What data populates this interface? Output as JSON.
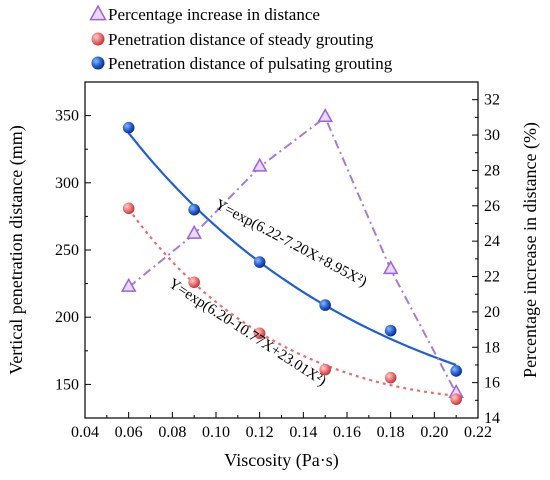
{
  "chart_data": {
    "type": "line",
    "xlabel": "Viscosity (Pa·s)",
    "ylabel": "Vertical penetration distance (mm)",
    "y2label": "Percentage increase in distance (%)",
    "xlim": [
      0.04,
      0.22
    ],
    "ylim": [
      125,
      375
    ],
    "y2lim": [
      14,
      33
    ],
    "xticks": [
      "0.04",
      "0.06",
      "0.08",
      "0.10",
      "0.12",
      "0.14",
      "0.16",
      "0.18",
      "0.20",
      "0.22"
    ],
    "yticks": [
      "150",
      "200",
      "250",
      "300",
      "350"
    ],
    "y2ticks": [
      "14",
      "16",
      "18",
      "20",
      "22",
      "24",
      "26",
      "28",
      "30",
      "32"
    ],
    "legend_position": "top",
    "series": [
      {
        "name": "Percentage increase in distance",
        "axis": "right",
        "marker": "triangle",
        "color": "#a57bdc",
        "x": [
          0.06,
          0.09,
          0.12,
          0.15,
          0.18,
          0.21
        ],
        "y": [
          21.4,
          24.4,
          28.2,
          31.0,
          22.4,
          15.4
        ]
      },
      {
        "name": "Penetration distance of steady grouting",
        "axis": "left",
        "marker": "circle",
        "color": "#f06a6a",
        "x": [
          0.06,
          0.09,
          0.12,
          0.15,
          0.18,
          0.21
        ],
        "y": [
          281,
          226,
          188,
          161,
          155,
          139
        ]
      },
      {
        "name": "Penetration distance of pulsating grouting",
        "axis": "left",
        "marker": "circle",
        "color": "#1f5fd6",
        "x": [
          0.06,
          0.09,
          0.12,
          0.15,
          0.18,
          0.21
        ],
        "y": [
          341,
          280,
          241,
          209,
          190,
          160
        ]
      }
    ],
    "fits": [
      {
        "series": "Penetration distance of pulsating grouting",
        "a": 6.22,
        "b": -7.2,
        "c": 8.95,
        "x_range": [
          0.06,
          0.21
        ],
        "label": "Y=exp(6.22-7.20X+8.95X²)"
      },
      {
        "series": "Penetration distance of steady grouting",
        "a": 6.2,
        "b": -10.77,
        "c": 23.01,
        "x_range": [
          0.06,
          0.21
        ],
        "label": "Y=exp(6.20-10.77X+23.01X²)"
      }
    ]
  }
}
